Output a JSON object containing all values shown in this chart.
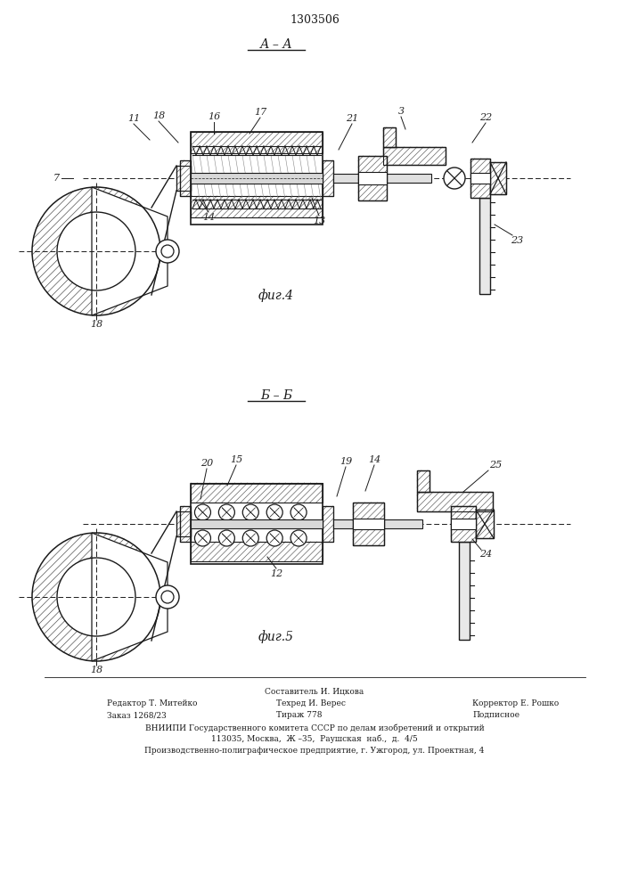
{
  "title": "1303506",
  "fig4_label": "А – А",
  "fig4_caption": "фиг.4",
  "fig5_label": "Б – Б",
  "fig5_caption": "фиг.5",
  "footer_line1": "Составитель И. Ицкова",
  "footer_line2_left": "Редактор Т. Митейко",
  "footer_line2_mid": "Техред И. Верес",
  "footer_line2_right": "Корректор Е. Рошко",
  "footer_line3_left": "Заказ 1268/23",
  "footer_line3_mid": "Тираж 778",
  "footer_line3_right": "Подписное",
  "footer_line4": "ВНИИПИ Государственного комитета СССР по делам изобретений и открытий",
  "footer_line5": "113035, Москва,  Ж –35,  Раушская  наб.,  д.  4/5",
  "footer_line6": "Производственно-полиграфическое предприятие, г. Ужгород, ул. Проектная, 4",
  "bg_color": "#ffffff",
  "line_color": "#1a1a1a",
  "label_color": "#222222"
}
